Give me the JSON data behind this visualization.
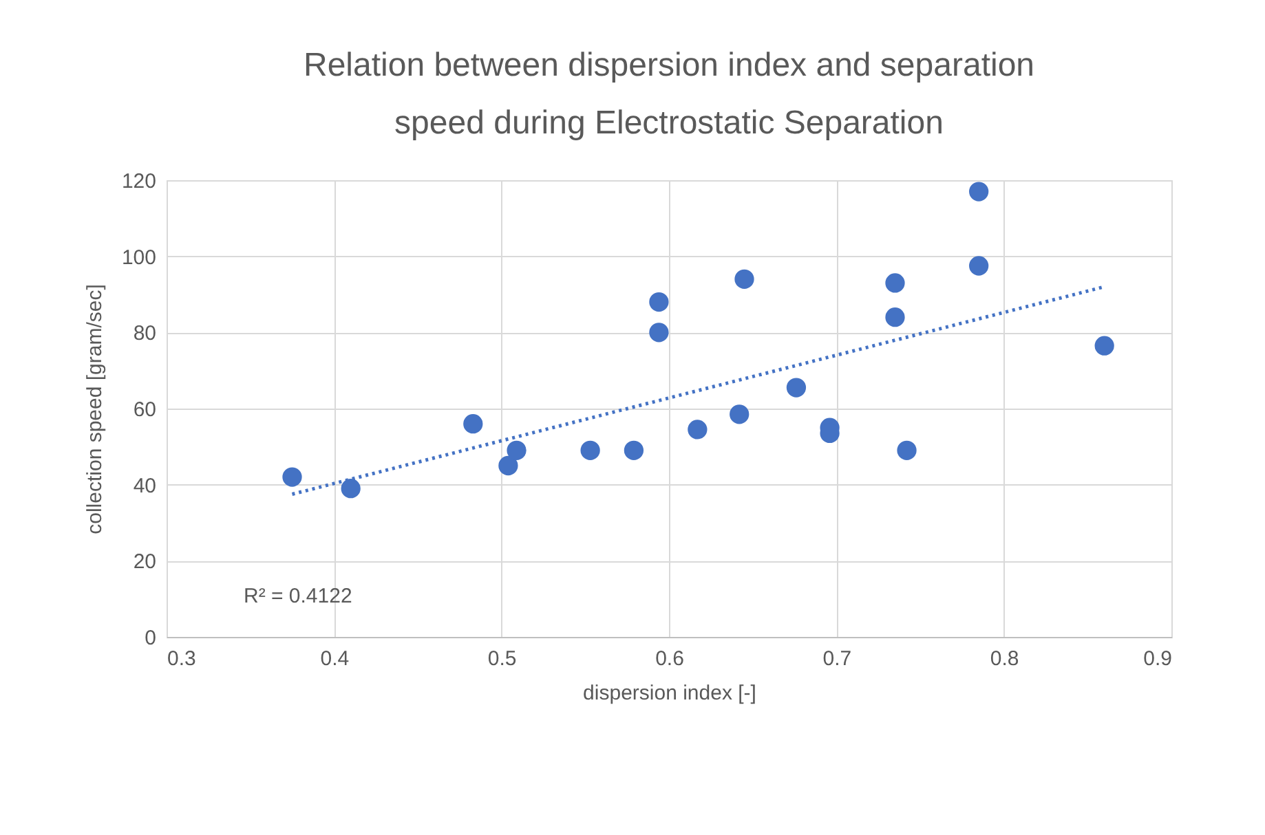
{
  "chart_data": {
    "type": "scatter",
    "title": "Relation between dispersion index and separation speed during Electrostatic Separation",
    "xlabel": "dispersion index [-]",
    "ylabel": "collection speed [gram/sec]",
    "xlim": [
      0.3,
      0.9
    ],
    "xticks": [
      0.3,
      0.4,
      0.5,
      0.6,
      0.7,
      0.8,
      0.9
    ],
    "ylim": [
      0,
      120
    ],
    "yticks": [
      0,
      20,
      40,
      60,
      80,
      100,
      120
    ],
    "grid": true,
    "annotations": [
      "R² = 0.4122"
    ],
    "series": [
      {
        "type": "scatter",
        "marker": "circle",
        "color": "#4472c4",
        "x": [
          0.375,
          0.41,
          0.483,
          0.504,
          0.509,
          0.553,
          0.579,
          0.594,
          0.594,
          0.617,
          0.642,
          0.645,
          0.676,
          0.696,
          0.696,
          0.735,
          0.735,
          0.742,
          0.785,
          0.785,
          0.86
        ],
        "values": [
          42,
          39,
          56,
          45,
          49,
          49,
          49,
          88,
          80,
          54.5,
          58.5,
          94,
          65.5,
          55,
          53.5,
          93,
          84,
          49,
          117,
          97.5,
          76.5
        ]
      },
      {
        "type": "line",
        "color": "#4472c4",
        "line_style": "dotted",
        "x": [
          0.375,
          0.86
        ],
        "values": [
          37.5,
          92
        ]
      }
    ]
  }
}
